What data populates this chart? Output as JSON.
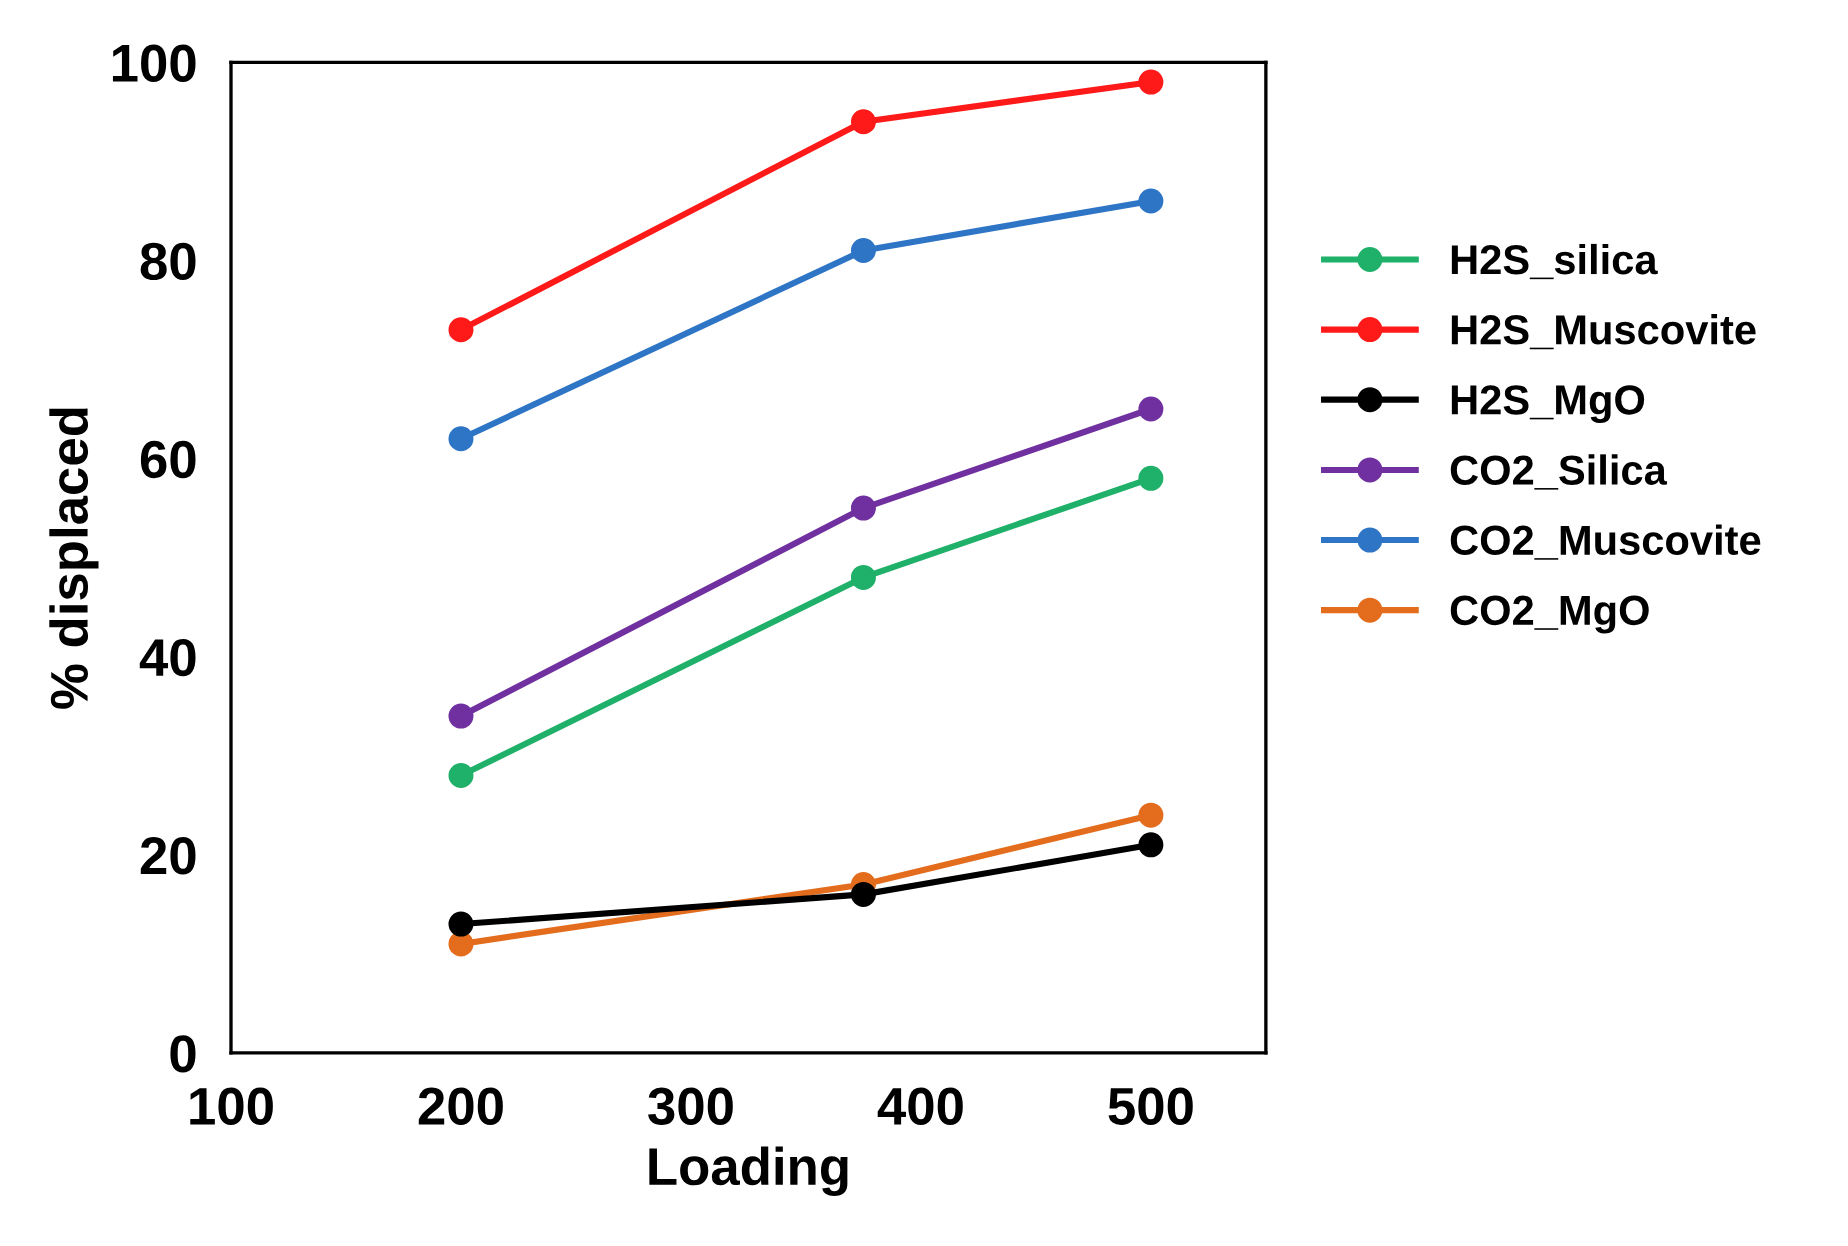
{
  "chart_data": {
    "type": "line",
    "xlabel": "Loading",
    "ylabel": "% displaced",
    "x": [
      200,
      375,
      500
    ],
    "series": [
      {
        "name": "H2S_silica",
        "color": "#1fb069",
        "values": [
          28,
          48,
          58
        ]
      },
      {
        "name": "H2S_Muscovite",
        "color": "#ff1a1a",
        "values": [
          73,
          94,
          98
        ]
      },
      {
        "name": "H2S_MgO",
        "color": "#000000",
        "values": [
          13,
          16,
          21
        ]
      },
      {
        "name": "CO2_Silica",
        "color": "#7030a0",
        "values": [
          34,
          55,
          65
        ]
      },
      {
        "name": "CO2_Muscovite",
        "color": "#2e75c6",
        "values": [
          62,
          81,
          86
        ]
      },
      {
        "name": "CO2_MgO",
        "color": "#e36c1d",
        "values": [
          11,
          17,
          24
        ]
      }
    ],
    "xlim": [
      100,
      550
    ],
    "xticks": [
      100,
      200,
      300,
      400,
      500
    ],
    "ylim": [
      0,
      100
    ],
    "yticks": [
      0,
      20,
      40,
      60,
      80,
      100
    ],
    "grid": false,
    "legend": "right",
    "marker": "circle",
    "line_style": "solid"
  }
}
